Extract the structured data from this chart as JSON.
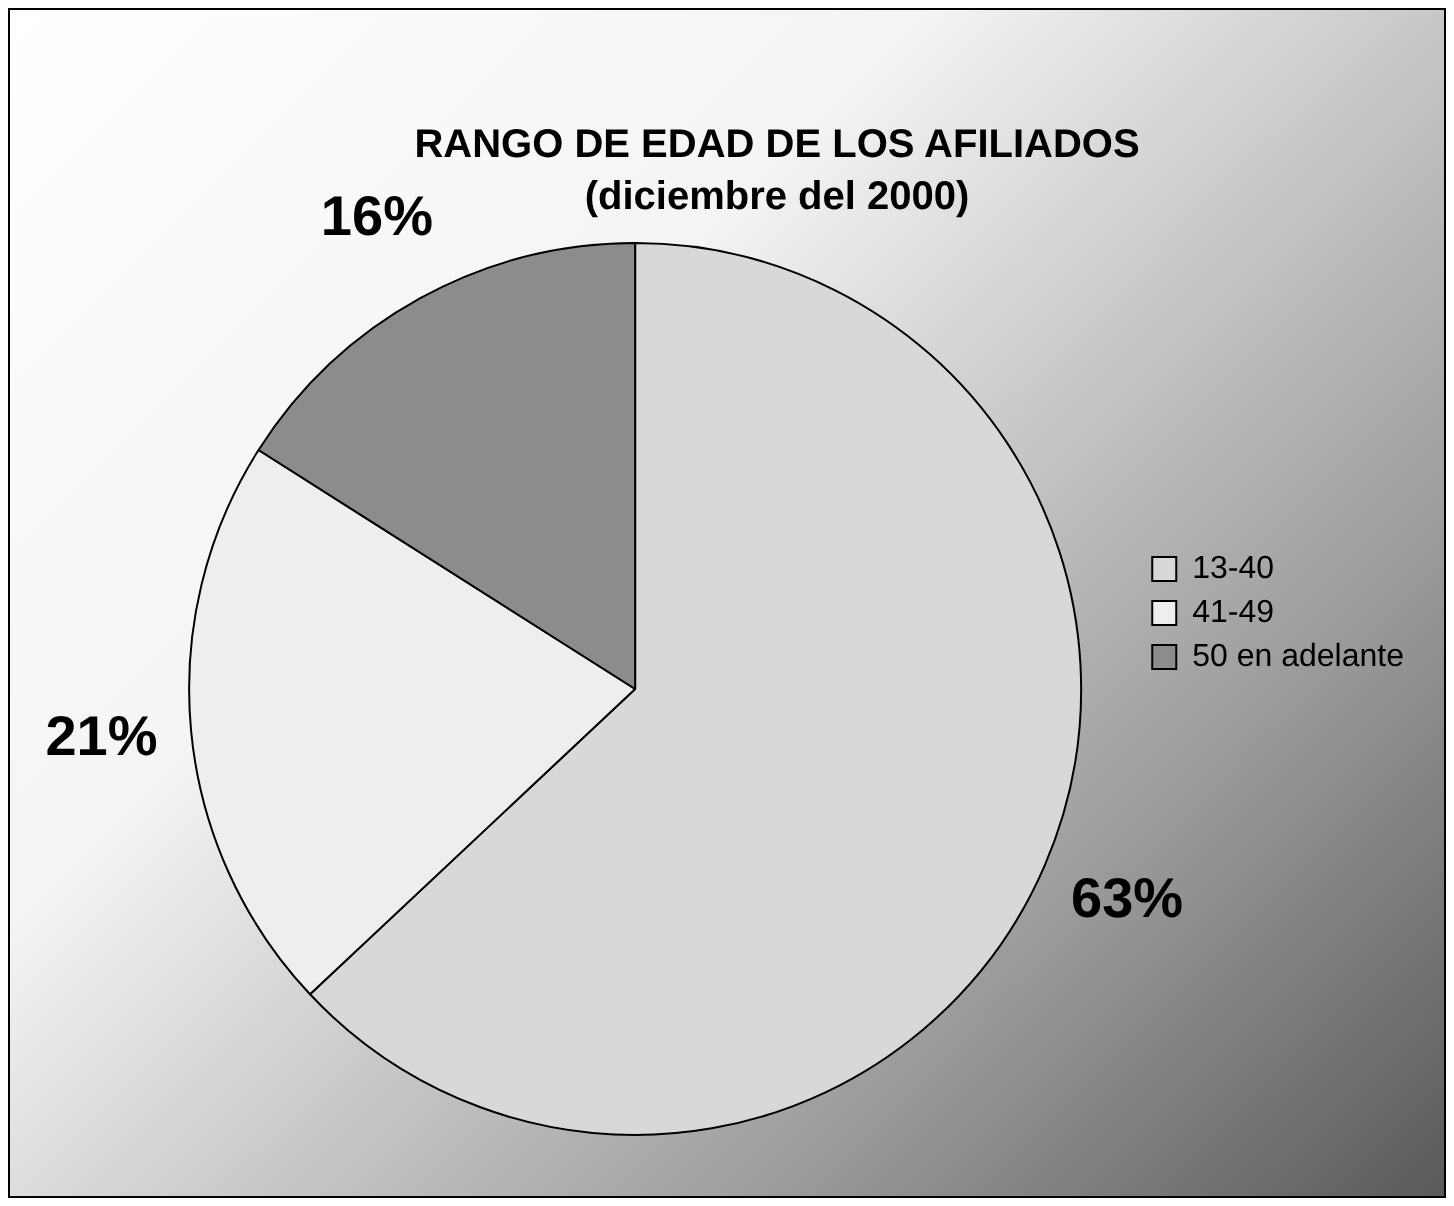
{
  "chart_data": {
    "type": "pie",
    "title": "RANGO DE EDAD DE LOS AFILIADOS",
    "subtitle": "(diciembre del 2000)",
    "categories": [
      "13-40",
      "41-49",
      "50 en adelante"
    ],
    "values": [
      63,
      21,
      16
    ],
    "value_labels": [
      "63%",
      "21%",
      "16%"
    ],
    "colors": [
      "#d8d8d8",
      "#eeeeee",
      "#8c8c8c"
    ],
    "legend": "right"
  }
}
